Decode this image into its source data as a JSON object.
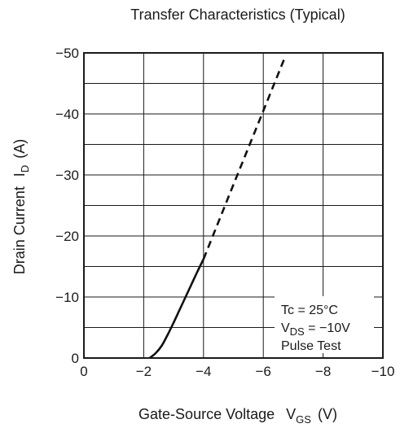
{
  "chart_data": {
    "type": "line",
    "title": "Transfer Characteristics (Typical)",
    "xlabel": {
      "main": "Gate-Source Voltage",
      "symbol": "V",
      "sub": "GS",
      "unit": "(V)"
    },
    "ylabel": {
      "main": "Drain Current",
      "symbol": "I",
      "sub": "D",
      "unit": "(A)"
    },
    "xlim": [
      0,
      -10
    ],
    "ylim": [
      0,
      -50
    ],
    "x_ticks": [
      0,
      -2,
      -4,
      -6,
      -8,
      -10
    ],
    "x_tick_labels": [
      "0",
      "−2",
      "−4",
      "−6",
      "−8",
      "−10"
    ],
    "y_ticks": [
      0,
      -10,
      -20,
      -30,
      -40,
      -50
    ],
    "y_tick_labels": [
      "0",
      "−10",
      "−20",
      "−30",
      "−40",
      "−50"
    ],
    "minor_grid_step_y": -5,
    "grid": true,
    "series": [
      {
        "style": "solid",
        "x": [
          -2.2,
          -2.4,
          -2.6,
          -2.8,
          -3.0,
          -3.2,
          -3.4,
          -3.6,
          -3.8,
          -4.0
        ],
        "y": [
          0,
          -0.8,
          -2.0,
          -3.8,
          -5.8,
          -7.9,
          -10.0,
          -12.1,
          -14.2,
          -16.2
        ]
      },
      {
        "style": "dashed",
        "x": [
          -4.0,
          -5.0,
          -6.0,
          -6.7
        ],
        "y": [
          -16.2,
          -28.4,
          -40.5,
          -49.0
        ]
      }
    ],
    "annotation": {
      "line1": "Tc = 25°C",
      "line2": {
        "symbol": "V",
        "sub": "DS",
        "value": " = −10V"
      },
      "line3": "Pulse Test"
    }
  }
}
